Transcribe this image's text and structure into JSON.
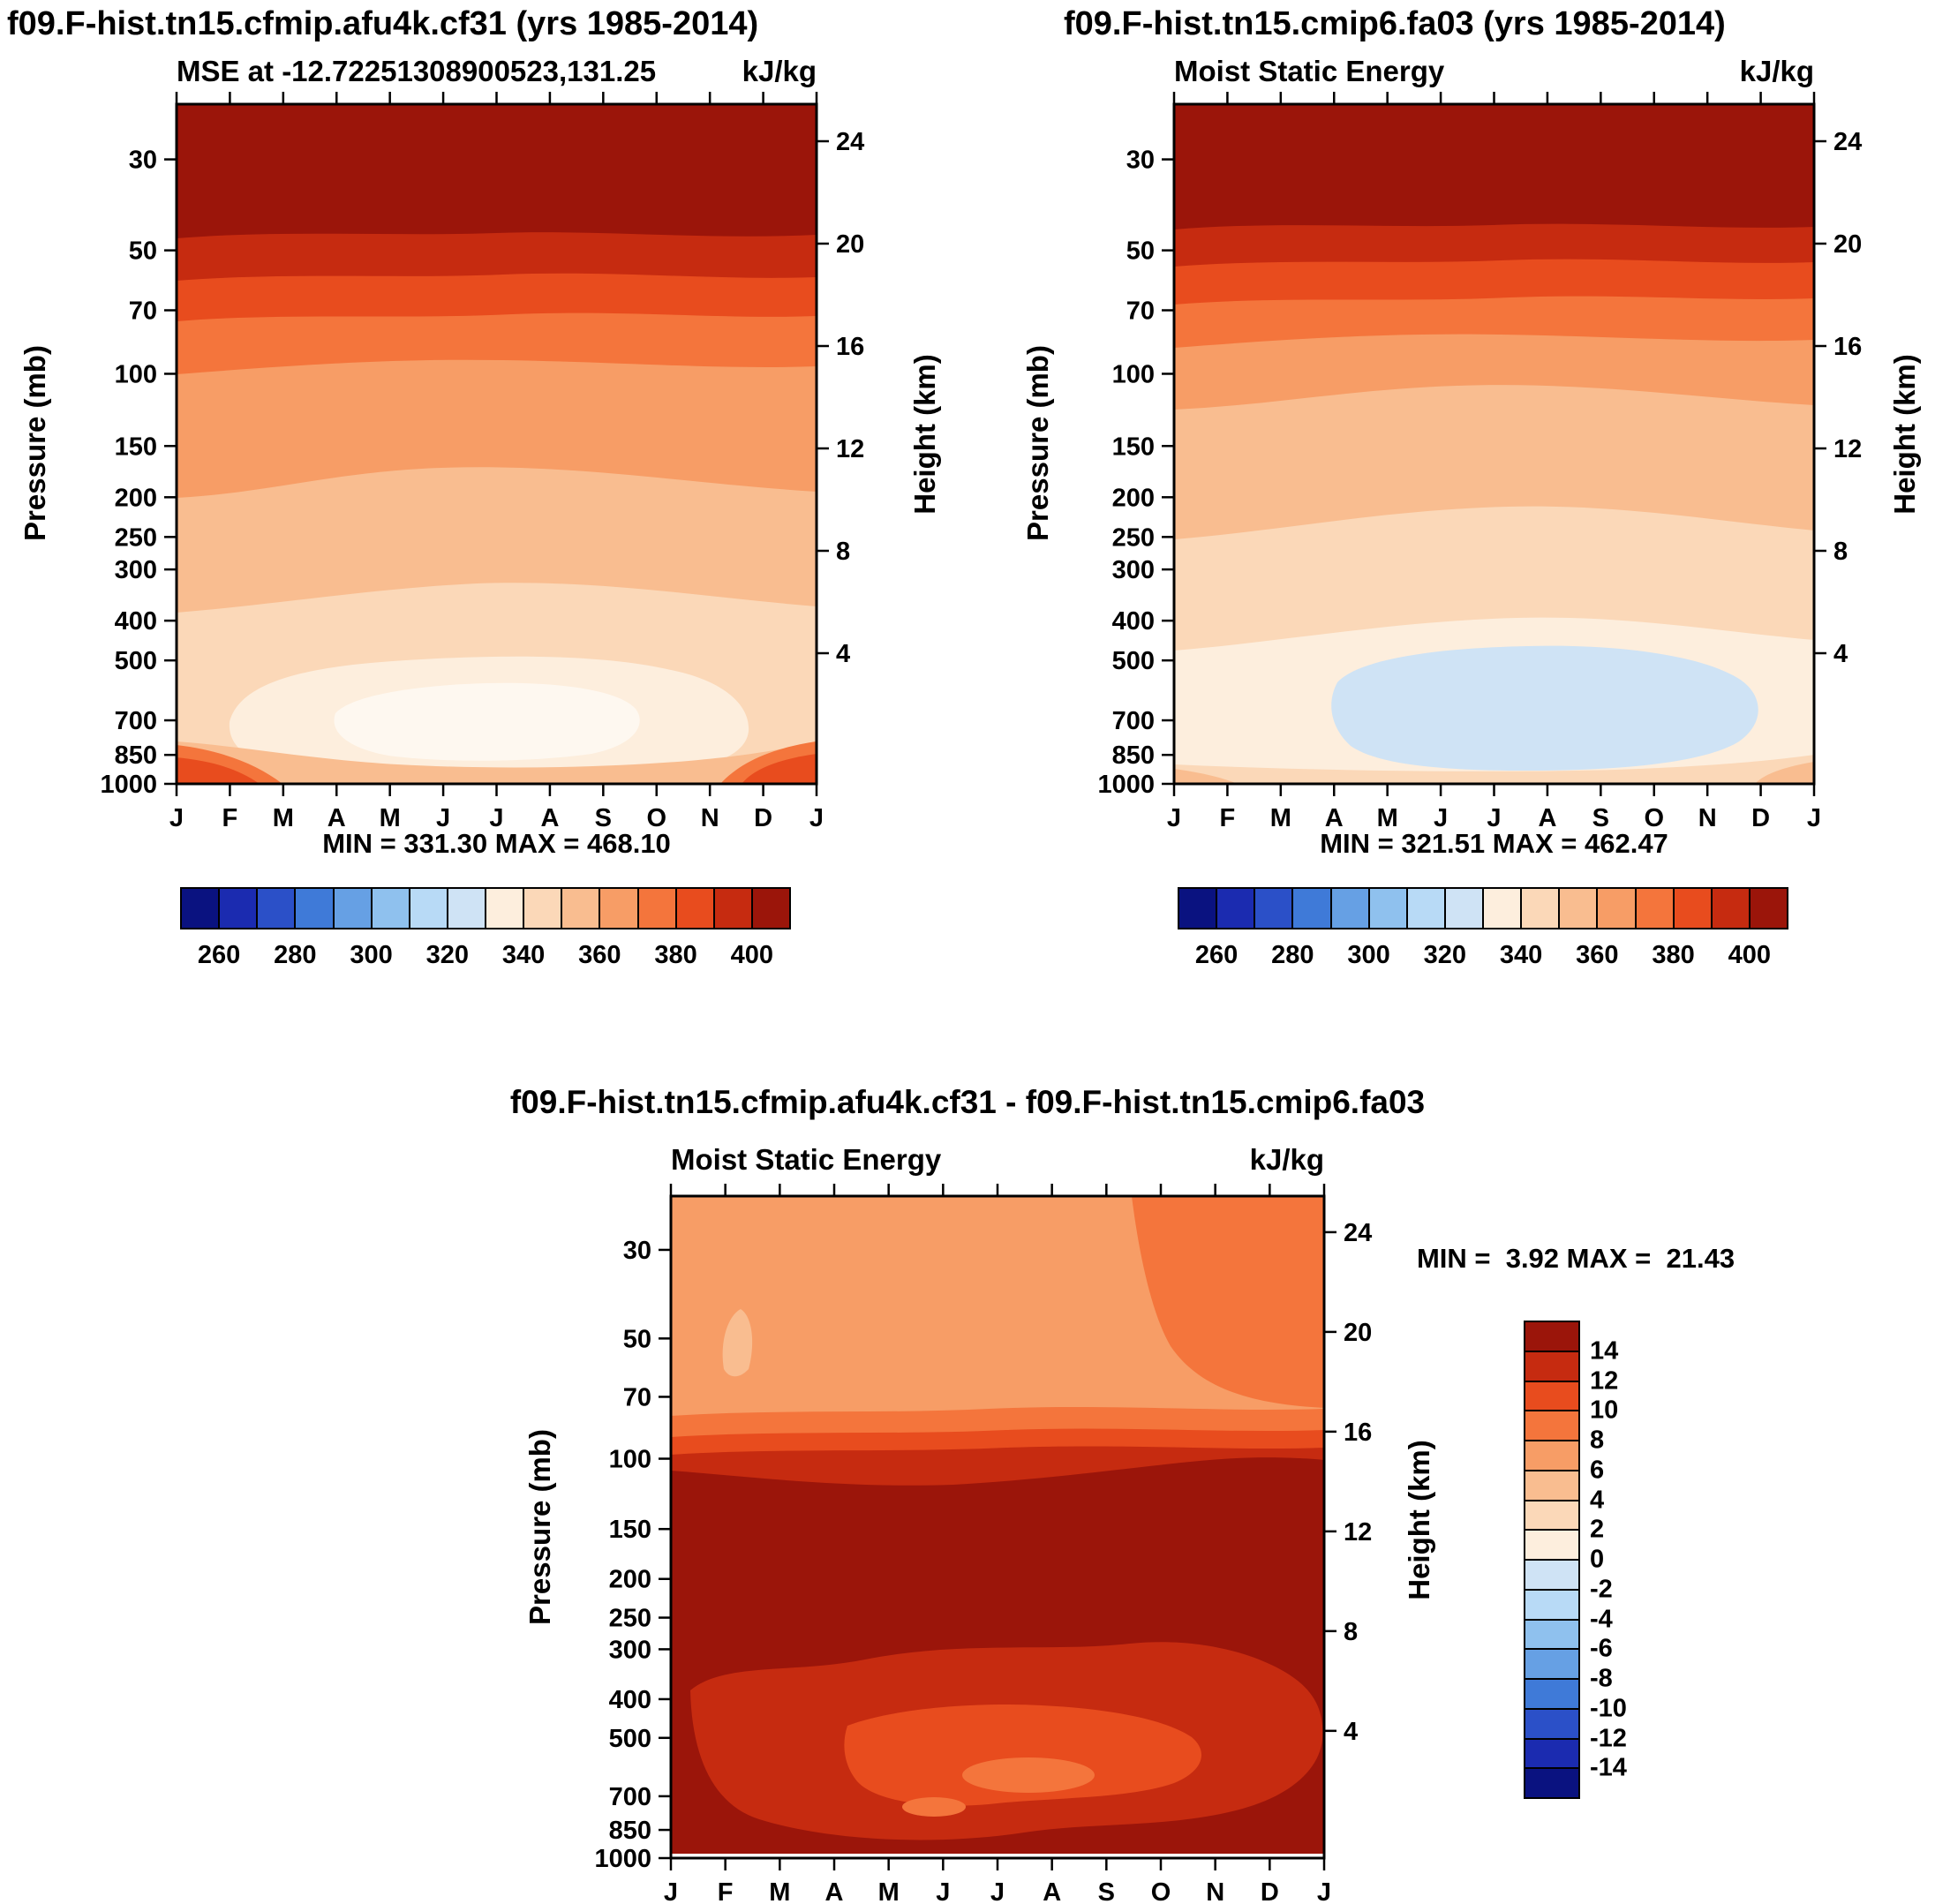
{
  "palette": {
    "colors": [
      "#0a1280",
      "#1b2bb0",
      "#2b50c8",
      "#3f7ad8",
      "#66a0e4",
      "#8fc1ee",
      "#b8daf6",
      "#cfe3f5",
      "#fdeedd",
      "#fbd8b8",
      "#f9bd90",
      "#f79d66",
      "#f4753c",
      "#e84c1e",
      "#c62b10",
      "#9b150a"
    ],
    "white_core": "#fef8f0",
    "white_stripe": "#ffffff",
    "axis_color": "#000000",
    "background": "#ffffff"
  },
  "panel1": {
    "title": "f09.F-hist.tn15.cfmip.afu4k.cf31 (yrs 1985-2014)",
    "subtitle": "MSE at -12.72251308900523,131.25",
    "units": "kJ/kg",
    "min_max": "MIN = 331.30 MAX = 468.10",
    "y_axis_label": "Pressure (mb)",
    "y2_axis_label": "Height (km)",
    "pressure_ticks": [
      30,
      50,
      70,
      100,
      150,
      200,
      250,
      300,
      400,
      500,
      700,
      850,
      1000
    ],
    "height_ticks": [
      24,
      20,
      16,
      12,
      8,
      4
    ],
    "month_labels": [
      "J",
      "F",
      "M",
      "A",
      "M",
      "J",
      "J",
      "A",
      "S",
      "O",
      "N",
      "D",
      "J"
    ],
    "colorbar_labels": [
      260,
      280,
      300,
      320,
      340,
      360,
      380,
      400
    ]
  },
  "panel2": {
    "title": "f09.F-hist.tn15.cmip6.fa03 (yrs 1985-2014)",
    "subtitle": "Moist Static Energy",
    "units": "kJ/kg",
    "min_max": "MIN = 321.51 MAX = 462.47",
    "y_axis_label": "Pressure (mb)",
    "y2_axis_label": "Height (km)",
    "pressure_ticks": [
      30,
      50,
      70,
      100,
      150,
      200,
      250,
      300,
      400,
      500,
      700,
      850,
      1000
    ],
    "height_ticks": [
      24,
      20,
      16,
      12,
      8,
      4
    ],
    "month_labels": [
      "J",
      "F",
      "M",
      "A",
      "M",
      "J",
      "J",
      "A",
      "S",
      "O",
      "N",
      "D",
      "J"
    ],
    "colorbar_labels": [
      260,
      280,
      300,
      320,
      340,
      360,
      380,
      400
    ]
  },
  "panel3": {
    "title": "f09.F-hist.tn15.cfmip.afu4k.cf31 - f09.F-hist.tn15.cmip6.fa03",
    "subtitle": "Moist Static Energy",
    "units": "kJ/kg",
    "min_max": "MIN =  3.92 MAX =  21.43",
    "y_axis_label": "Pressure (mb)",
    "y2_axis_label": "Height (km)",
    "pressure_ticks": [
      30,
      50,
      70,
      100,
      150,
      200,
      250,
      300,
      400,
      500,
      700,
      850,
      1000
    ],
    "height_ticks": [
      24,
      20,
      16,
      12,
      8,
      4
    ],
    "month_labels": [
      "J",
      "F",
      "M",
      "A",
      "M",
      "J",
      "J",
      "A",
      "S",
      "O",
      "N",
      "D",
      "J"
    ],
    "colorbar_values": [
      14,
      12,
      10,
      8,
      6,
      4,
      2,
      0,
      -2,
      -4,
      -6,
      -8,
      -10,
      -12,
      -14
    ]
  },
  "chart_data": [
    {
      "type": "heatmap",
      "subtype": "filled-contour-pressure-time",
      "title": "f09.F-hist.tn15.cfmip.afu4k.cf31 (yrs 1985-2014)",
      "subtitle": "MSE at -12.72251308900523,131.25",
      "units": "kJ/kg",
      "x_categories": [
        "J",
        "F",
        "M",
        "A",
        "M",
        "J",
        "J",
        "A",
        "S",
        "O",
        "N",
        "D",
        "J"
      ],
      "y_pressure_mb": [
        30,
        50,
        70,
        100,
        150,
        200,
        250,
        300,
        400,
        500,
        700,
        850,
        1000
      ],
      "y2_height_km": [
        24,
        20,
        16,
        12,
        8,
        4
      ],
      "y_scale": "log",
      "min": 331.3,
      "max": 468.1,
      "contour_level_range": [
        250,
        410
      ],
      "contour_interval": 10,
      "colorbar_tick_labels": [
        260,
        280,
        300,
        320,
        340,
        360,
        380,
        400
      ],
      "legend_position": "bottom",
      "approx_annual_mean_by_pressure_mb": {
        "30": 455,
        "50": 420,
        "70": 385,
        "100": 372,
        "150": 362,
        "200": 356,
        "250": 352,
        "300": 350,
        "400": 345,
        "500": 340,
        "700": 335,
        "850": 340,
        "1000": 355
      },
      "notes_visible_pattern": "dark-red maximum aloft above 50 mb; minimum pale region 330-340 kJ/kg near 600-850 mb in May-Sep; values rise again toward 1000 mb, strongest Nov-Feb"
    },
    {
      "type": "heatmap",
      "subtype": "filled-contour-pressure-time",
      "title": "f09.F-hist.tn15.cmip6.fa03 (yrs 1985-2014)",
      "subtitle": "Moist Static Energy",
      "units": "kJ/kg",
      "x_categories": [
        "J",
        "F",
        "M",
        "A",
        "M",
        "J",
        "J",
        "A",
        "S",
        "O",
        "N",
        "D",
        "J"
      ],
      "y_pressure_mb": [
        30,
        50,
        70,
        100,
        150,
        200,
        250,
        300,
        400,
        500,
        700,
        850,
        1000
      ],
      "y2_height_km": [
        24,
        20,
        16,
        12,
        8,
        4
      ],
      "y_scale": "log",
      "min": 321.51,
      "max": 462.47,
      "contour_level_range": [
        250,
        410
      ],
      "contour_interval": 10,
      "colorbar_tick_labels": [
        260,
        280,
        300,
        320,
        340,
        360,
        380,
        400
      ],
      "legend_position": "bottom",
      "approx_annual_mean_by_pressure_mb": {
        "30": 450,
        "50": 415,
        "70": 382,
        "100": 368,
        "150": 360,
        "200": 354,
        "250": 350,
        "300": 347,
        "400": 342,
        "500": 337,
        "700": 330,
        "850": 332,
        "1000": 345
      },
      "notes_visible_pattern": "similar structure to left panel but cooler; pale-blue minimum 320-330 kJ/kg near 550-950 mb in May-Nov"
    },
    {
      "type": "heatmap",
      "subtype": "filled-contour-difference",
      "title": "f09.F-hist.tn15.cfmip.afu4k.cf31 - f09.F-hist.tn15.cmip6.fa03",
      "subtitle": "Moist Static Energy",
      "units": "kJ/kg",
      "x_categories": [
        "J",
        "F",
        "M",
        "A",
        "M",
        "J",
        "J",
        "A",
        "S",
        "O",
        "N",
        "D",
        "J"
      ],
      "y_pressure_mb": [
        30,
        50,
        70,
        100,
        150,
        200,
        250,
        300,
        400,
        500,
        700,
        850,
        1000
      ],
      "y2_height_km": [
        24,
        20,
        16,
        12,
        8,
        4
      ],
      "y_scale": "log",
      "min": 3.92,
      "max": 21.43,
      "contour_level_range": [
        -16,
        16
      ],
      "contour_interval": 2,
      "colorbar_tick_labels": [
        14,
        12,
        10,
        8,
        6,
        4,
        2,
        0,
        -2,
        -4,
        -6,
        -8,
        -10,
        -12,
        -14
      ],
      "legend_position": "right-vertical",
      "approx_annual_mean_by_pressure_mb": {
        "30": 7,
        "50": 7,
        "70": 7,
        "100": 12,
        "150": 18,
        "200": 20,
        "250": 20,
        "300": 18,
        "400": 16,
        "500": 14,
        "700": 12,
        "850": 14,
        "1000": 15
      },
      "notes_visible_pattern": "all-positive difference; ~6-8 kJ/kg above 70 mb, sharp increase near 100 mb, >14 kJ/kg (dark red) through most of troposphere, weaker 8-12 kJ/kg patches 450-750 mb in May-Sep"
    }
  ]
}
